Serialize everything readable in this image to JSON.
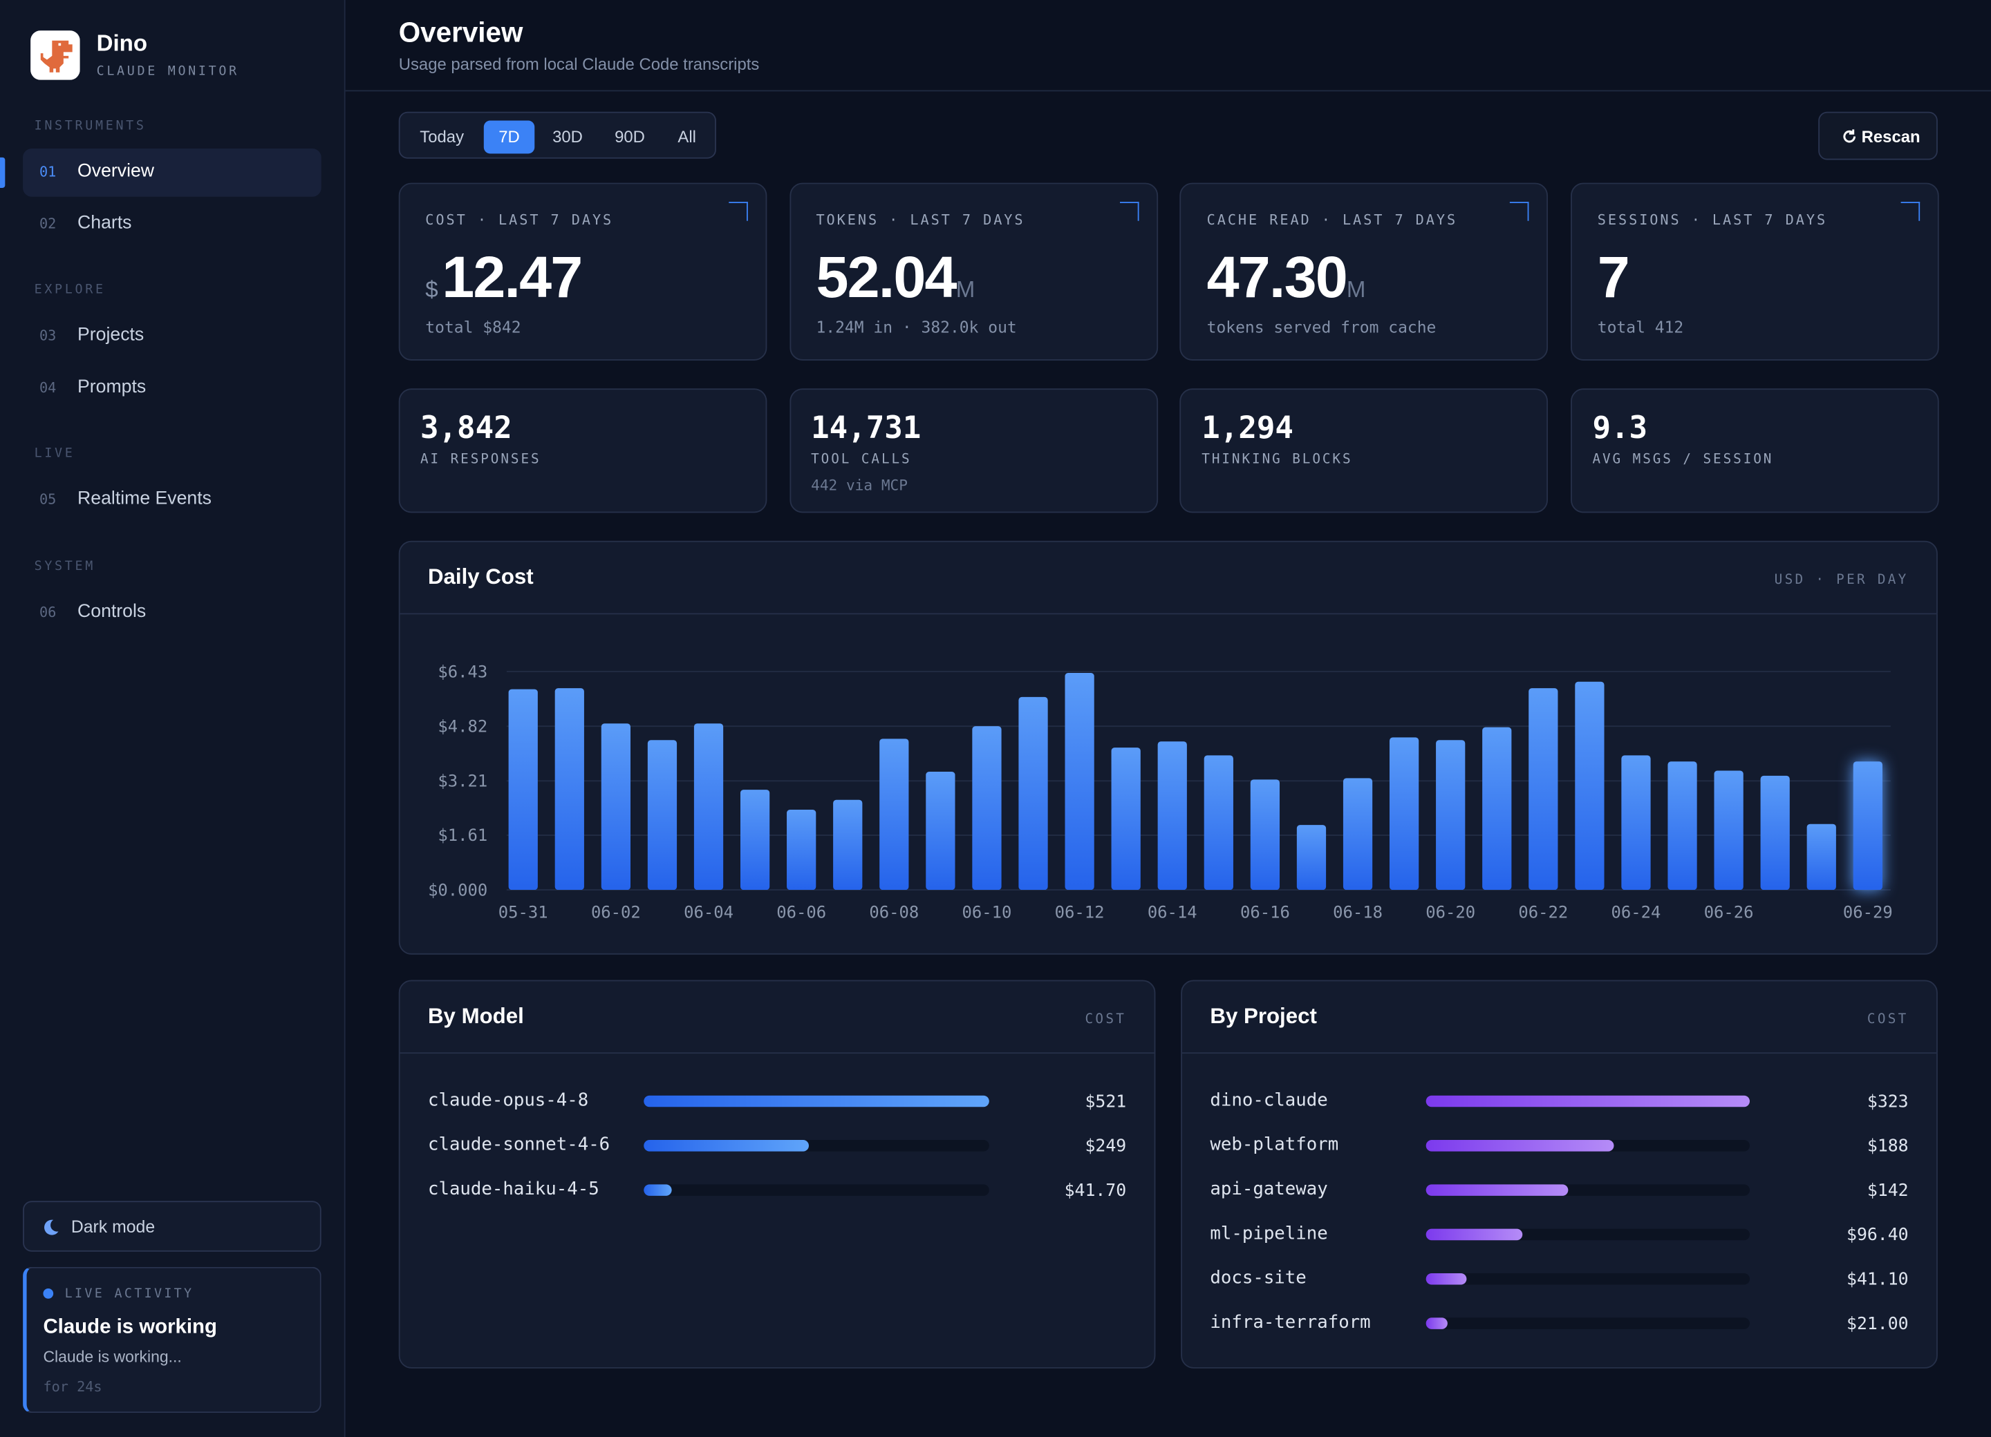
{
  "sidebar": {
    "brand": "Dino",
    "tagline": "CLAUDE MONITOR",
    "active_section": 0,
    "active_item": 0,
    "sections": [
      {
        "label": "INSTRUMENTS",
        "items": [
          {
            "num": "01",
            "label": "Overview"
          },
          {
            "num": "02",
            "label": "Charts"
          }
        ]
      },
      {
        "label": "EXPLORE",
        "items": [
          {
            "num": "03",
            "label": "Projects"
          },
          {
            "num": "04",
            "label": "Prompts"
          }
        ]
      },
      {
        "label": "LIVE",
        "items": [
          {
            "num": "05",
            "label": "Realtime Events"
          }
        ]
      },
      {
        "label": "SYSTEM",
        "items": [
          {
            "num": "06",
            "label": "Controls"
          }
        ]
      }
    ],
    "dark_mode": "Dark mode",
    "live": {
      "label": "LIVE ACTIVITY",
      "title": "Claude is working",
      "text": "Claude is working...",
      "time": "for 24s"
    }
  },
  "header": {
    "title": "Overview",
    "subtitle": "Usage parsed from local Claude Code transcripts"
  },
  "ranges": {
    "options": [
      "Today",
      "7D",
      "30D",
      "90D",
      "All"
    ],
    "active": 1
  },
  "rescan": "Rescan",
  "kpis": [
    {
      "label": "COST · LAST 7 DAYS",
      "prefix": "$",
      "value": "12.47",
      "sub": "total $842"
    },
    {
      "label": "TOKENS · LAST 7 DAYS",
      "value": "52.04",
      "unit": "M",
      "sub": "1.24M in · 382.0k out"
    },
    {
      "label": "CACHE READ · LAST 7 DAYS",
      "value": "47.30",
      "unit": "M",
      "sub": "tokens served from cache"
    },
    {
      "label": "SESSIONS · LAST 7 DAYS",
      "value": "7",
      "sub": "total 412"
    }
  ],
  "stats": [
    {
      "value": "3,842",
      "label": "AI RESPONSES"
    },
    {
      "value": "14,731",
      "label": "TOOL CALLS",
      "sub": "442 via MCP"
    },
    {
      "value": "1,294",
      "label": "THINKING BLOCKS"
    },
    {
      "value": "9.3",
      "label": "AVG MSGS / SESSION"
    }
  ],
  "chart_data": [
    {
      "type": "bar",
      "title": "Daily Cost",
      "unit_label": "USD · PER DAY",
      "categories": [
        "05-31",
        null,
        "06-02",
        null,
        "06-04",
        null,
        "06-06",
        null,
        "06-08",
        null,
        "06-10",
        null,
        "06-12",
        null,
        "06-14",
        null,
        "06-16",
        null,
        "06-18",
        null,
        "06-20",
        null,
        "06-22",
        null,
        "06-24",
        null,
        "06-26",
        null,
        null,
        "06-29"
      ],
      "values": [
        5.91,
        5.94,
        4.9,
        4.41,
        4.9,
        2.95,
        2.36,
        2.65,
        4.45,
        3.48,
        4.82,
        5.68,
        6.39,
        4.19,
        4.37,
        3.96,
        3.25,
        1.91,
        3.29,
        4.49,
        4.41,
        4.79,
        5.94,
        6.13,
        3.96,
        3.78,
        3.51,
        3.36,
        1.94,
        3.78
      ],
      "colors": [
        "#5b9cf8",
        "#2563eb"
      ],
      "highlight_last": true,
      "ylim": [
        0,
        6.43
      ],
      "yticks": [
        {
          "value": 0,
          "label": "$0.000"
        },
        {
          "value": 1.61,
          "label": "$1.61"
        },
        {
          "value": 3.21,
          "label": "$3.21"
        },
        {
          "value": 4.82,
          "label": "$4.82"
        },
        {
          "value": 6.43,
          "label": "$6.43"
        }
      ],
      "grid": true
    },
    {
      "type": "hbar",
      "title": "By Model",
      "unit_label": "COST",
      "categories": [
        "claude-opus-4-8",
        "claude-sonnet-4-6",
        "claude-haiku-4-5"
      ],
      "values": [
        521,
        249,
        41.7
      ],
      "value_labels": [
        "$521",
        "$249",
        "$41.70"
      ],
      "colors": [
        "#2563eb",
        "#60a5fa"
      ]
    },
    {
      "type": "hbar",
      "title": "By Project",
      "unit_label": "COST",
      "categories": [
        "dino-claude",
        "web-platform",
        "api-gateway",
        "ml-pipeline",
        "docs-site",
        "infra-terraform"
      ],
      "values": [
        323,
        188,
        142,
        96.4,
        41.1,
        21.0
      ],
      "value_labels": [
        "$323",
        "$188",
        "$142",
        "$96.40",
        "$41.10",
        "$21.00"
      ],
      "colors": [
        "#7c3aed",
        "#b58cf7"
      ]
    }
  ]
}
